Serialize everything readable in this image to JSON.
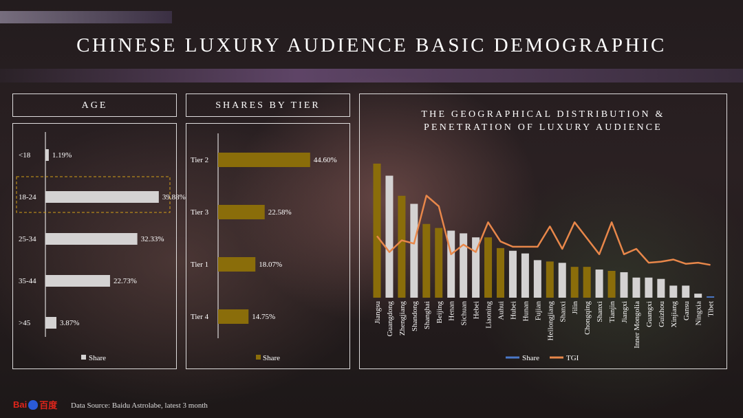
{
  "page": {
    "title": "CHINESE LUXURY AUDIENCE BASIC DEMOGRAPHIC",
    "source": "Data Source: Baidu Astrolabe, latest 3 month",
    "logo_text_a": "Bai",
    "logo_text_b": "百度"
  },
  "colors": {
    "gold": "#8a6d0a",
    "grey": "#d4d2d2",
    "orange": "#e8874a",
    "blue": "#4a78c8"
  },
  "age_panel": {
    "title": "AGE",
    "legend": "Share"
  },
  "tier_panel": {
    "title": "SHARES BY TIER",
    "legend": "Share"
  },
  "geo_panel": {
    "title_line1": "THE GEOGRAPHICAL DISTRIBUTION &",
    "title_line2": "PENETRATION OF LUXURY AUDIENCE",
    "legend_share": "Share",
    "legend_tgi": "TGI"
  },
  "chart_data": [
    {
      "type": "bar",
      "orientation": "horizontal",
      "categories": [
        "<18",
        "18-24",
        "25-34",
        "35-44",
        ">45"
      ],
      "values": [
        1.19,
        39.88,
        32.33,
        22.73,
        3.87
      ],
      "labels": [
        "1.19%",
        "39.88%",
        "32.33%",
        "22.73%",
        "3.87%"
      ],
      "highlighted": "18-24",
      "series": [
        {
          "name": "Share"
        }
      ],
      "xlim": [
        0,
        45
      ]
    },
    {
      "type": "bar",
      "orientation": "horizontal",
      "categories": [
        "Tier 2",
        "Tier 3",
        "Tier 1",
        "Tier 4"
      ],
      "values": [
        44.6,
        22.58,
        18.07,
        14.75
      ],
      "labels": [
        "44.60%",
        "22.58%",
        "18.07%",
        "14.75%"
      ],
      "series": [
        {
          "name": "Share"
        }
      ],
      "xlim": [
        0,
        50
      ]
    },
    {
      "type": "bar+line",
      "categories": [
        "Jiangsu",
        "Guangdong",
        "Zhengjiang",
        "Shandong",
        "Shanghai",
        "Beijing",
        "Henan",
        "Sichuan",
        "Hebei",
        "Liaoning",
        "Auhui",
        "Hubei",
        "Hunan",
        "Fujian",
        "Heilongjiang",
        "Shanxi",
        "Jilin",
        "Chongqing",
        "Shanxi",
        "Tianjin",
        "Jiangxi",
        "Inner Mongolia",
        "Guangxi",
        "Guizhou",
        "Xinjiang",
        "Gansu",
        "Ningxia",
        "Tibet"
      ],
      "bar_colors": [
        "gold",
        "grey",
        "gold",
        "grey",
        "gold",
        "gold",
        "grey",
        "grey",
        "grey",
        "gold",
        "gold",
        "grey",
        "grey",
        "grey",
        "gold",
        "grey",
        "gold",
        "gold",
        "grey",
        "gold",
        "grey",
        "grey",
        "grey",
        "grey",
        "grey",
        "grey",
        "grey",
        "blue"
      ],
      "series": [
        {
          "name": "Share",
          "values": [
            100,
            91,
            76,
            70,
            55,
            52,
            50,
            48,
            45,
            45,
            37,
            35,
            33,
            28,
            27,
            26,
            23,
            23,
            21,
            20,
            19,
            15,
            15,
            14,
            9,
            9,
            3,
            1
          ]
        },
        {
          "name": "TGI",
          "values": [
            72,
            57,
            68,
            65,
            110,
            100,
            55,
            64,
            57,
            85,
            67,
            62,
            62,
            62,
            81,
            60,
            85,
            70,
            55,
            85,
            55,
            60,
            47,
            48,
            50,
            46,
            47,
            45
          ]
        }
      ],
      "legend": "bottom"
    }
  ]
}
